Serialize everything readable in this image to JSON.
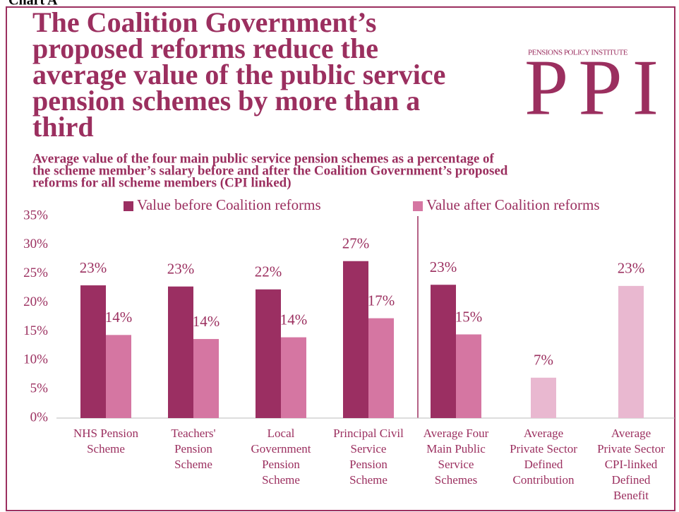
{
  "chart_data": {
    "type": "bar",
    "label": "Chart A",
    "title": [
      "The Coalition Government’s",
      "proposed reforms reduce the",
      "average value of the public service",
      "pension schemes by more than a",
      "third"
    ],
    "subtitle": [
      "Average value of the four main public service pension schemes as a percentage of",
      "the scheme member’s salary before and after the Coalition Government’s proposed",
      "reforms for all scheme members (CPI linked)"
    ],
    "logo_text": "PENSIONS POLICY INSTITUTE",
    "logo_mark": "PPI",
    "categories": [
      [
        "NHS Pension",
        "Scheme"
      ],
      [
        "Teachers'",
        "Pension",
        "Scheme"
      ],
      [
        "Local",
        "Government",
        "Pension",
        "Scheme"
      ],
      [
        "Principal Civil",
        "Service",
        "Pension",
        "Scheme"
      ],
      [
        "Average Four",
        "Main Public",
        "Service",
        "Schemes"
      ],
      [
        "Average",
        "Private Sector",
        "Defined",
        "Contribution"
      ],
      [
        "Average",
        "Private Sector",
        "CPI-linked",
        "Defined",
        "Benefit"
      ]
    ],
    "series": [
      {
        "name": "Value before Coalition reforms",
        "color": "#9b2f62",
        "values": [
          23.0,
          22.8,
          22.3,
          27.2,
          23.1,
          null,
          null
        ],
        "value_labels": [
          "23%",
          "23%",
          "22%",
          "27%",
          "23%",
          null,
          null
        ]
      },
      {
        "name": "Value after Coalition reforms",
        "color": "#d576a2",
        "colors": [
          "#d576a2",
          "#d576a2",
          "#d576a2",
          "#d576a2",
          "#d576a2",
          "#e9b8d0",
          "#e9b8d0"
        ],
        "values": [
          14.4,
          13.7,
          14.0,
          17.3,
          14.5,
          7.0,
          22.9
        ],
        "value_labels": [
          "14%",
          "14%",
          "14%",
          "17%",
          "15%",
          "7%",
          "23%"
        ]
      }
    ],
    "ylim": [
      0,
      35
    ],
    "yticks": [
      {
        "value": 0,
        "label": "0%"
      },
      {
        "value": 5,
        "label": "5%"
      },
      {
        "value": 10,
        "label": "10%"
      },
      {
        "value": 15,
        "label": "15%"
      },
      {
        "value": 20,
        "label": "20%"
      },
      {
        "value": 25,
        "label": "25%"
      },
      {
        "value": 30,
        "label": "30%"
      },
      {
        "value": 35,
        "label": "35%"
      }
    ],
    "grid": false,
    "legend": "top"
  }
}
